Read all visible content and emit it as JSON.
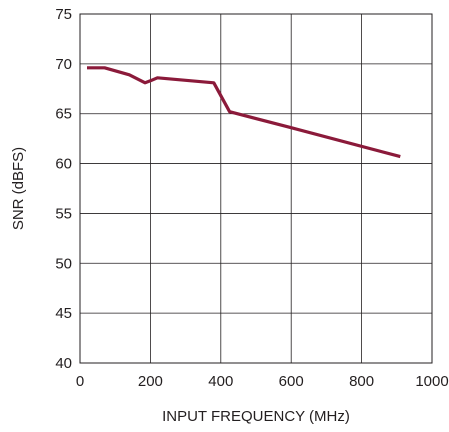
{
  "chart_data": {
    "type": "line",
    "title": "",
    "xlabel": "INPUT FREQUENCY (MHz)",
    "ylabel": "SNR (dBFS)",
    "xlim": [
      0,
      1000
    ],
    "ylim": [
      40,
      75
    ],
    "xticks": [
      0,
      200,
      400,
      600,
      800,
      1000
    ],
    "yticks": [
      40,
      45,
      50,
      55,
      60,
      65,
      70,
      75
    ],
    "grid": true,
    "legend": "none",
    "colors": {
      "line": "#8b1a3a",
      "grid": "#231f20",
      "text": "#231f20"
    },
    "series": [
      {
        "x": [
          20,
          70,
          140,
          185,
          200,
          220,
          380,
          425,
          600,
          910
        ],
        "y": [
          69.6,
          69.6,
          68.9,
          68.1,
          68.3,
          68.6,
          68.1,
          65.2,
          63.6,
          60.7
        ]
      }
    ]
  }
}
